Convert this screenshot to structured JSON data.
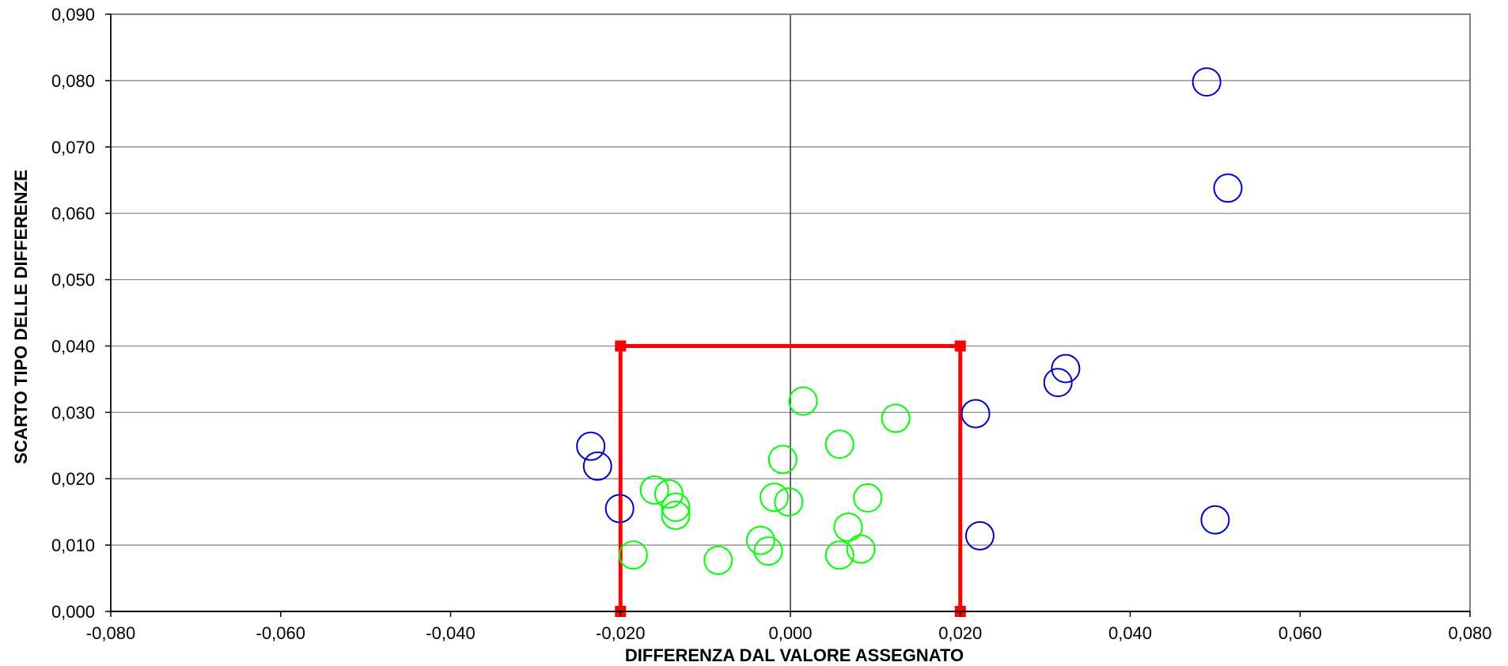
{
  "chart_data": {
    "type": "scatter",
    "title": "",
    "xlabel": "DIFFERENZA DAL VALORE ASSEGNATO",
    "ylabel": "SCARTO TIPO DELLE DIFFERENZE",
    "xlim": [
      -0.08,
      0.08
    ],
    "ylim": [
      0,
      0.09
    ],
    "x_ticks": [
      "-0,080",
      "-0,060",
      "-0,040",
      "-0,020",
      "0,000",
      "0,020",
      "0,040",
      "0,060",
      "0,080"
    ],
    "y_ticks": [
      "0,000",
      "0,010",
      "0,020",
      "0,030",
      "0,040",
      "0,050",
      "0,060",
      "0,070",
      "0,080",
      "0,090"
    ],
    "grid": "horizontal",
    "legend": "none",
    "colors": {
      "inside": "#00ff00",
      "outside": "#0000cc",
      "limit": "#ff0000",
      "grid": "#808080"
    },
    "limit_box": {
      "x": [
        -0.02,
        -0.02,
        0.02,
        0.02
      ],
      "y": [
        0,
        0.04,
        0.04,
        0
      ]
    },
    "series": [
      {
        "color": "#00ff00",
        "points": [
          [
            0.0015,
            0.0317
          ],
          [
            0.0124,
            0.0291
          ],
          [
            0.0058,
            0.0252
          ],
          [
            -0.0009,
            0.0229
          ],
          [
            -0.016,
            0.0183
          ],
          [
            -0.0143,
            0.0177
          ],
          [
            -0.0135,
            0.0157
          ],
          [
            -0.0135,
            0.0145
          ],
          [
            -0.0019,
            0.0172
          ],
          [
            -0.0002,
            0.0165
          ],
          [
            0.0091,
            0.0171
          ],
          [
            0.0068,
            0.0127
          ],
          [
            -0.0035,
            0.0107
          ],
          [
            -0.0026,
            0.0091
          ],
          [
            0.0058,
            0.0085
          ],
          [
            0.0083,
            0.0094
          ],
          [
            -0.0185,
            0.0085
          ],
          [
            -0.0085,
            0.0077
          ]
        ]
      },
      {
        "color": "#0000cc",
        "points": [
          [
            0.049,
            0.0798
          ],
          [
            0.0515,
            0.0638
          ],
          [
            0.0324,
            0.0366
          ],
          [
            0.0315,
            0.0345
          ],
          [
            0.0218,
            0.0298
          ],
          [
            0.0223,
            0.0114
          ],
          [
            0.05,
            0.0138
          ],
          [
            -0.0235,
            0.0249
          ],
          [
            -0.0227,
            0.0219
          ],
          [
            -0.0201,
            0.0155
          ]
        ]
      }
    ]
  }
}
